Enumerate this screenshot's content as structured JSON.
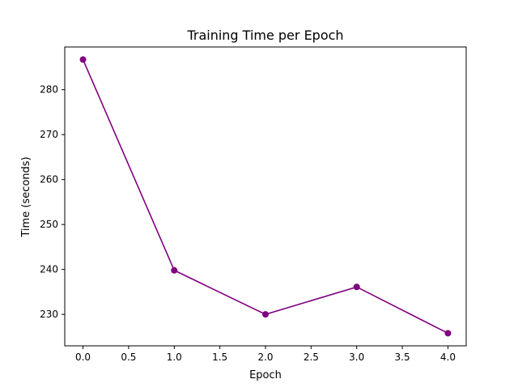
{
  "chart_data": {
    "type": "line",
    "title": "Training Time per Epoch",
    "xlabel": "Epoch",
    "ylabel": "Time (seconds)",
    "x": [
      0,
      1,
      2,
      3,
      4
    ],
    "series": [
      {
        "values": [
          286.7,
          239.8,
          230.0,
          236.1,
          225.8
        ],
        "color": "#800080",
        "marker": "circle"
      }
    ],
    "xlim": [
      -0.2,
      4.2
    ],
    "ylim": [
      223.0,
      289.5
    ],
    "xticks": [
      0.0,
      0.5,
      1.0,
      1.5,
      2.0,
      2.5,
      3.0,
      3.5,
      4.0
    ],
    "xtick_labels": [
      "0.0",
      "0.5",
      "1.0",
      "1.5",
      "2.0",
      "2.5",
      "3.0",
      "3.5",
      "4.0"
    ],
    "yticks": [
      230,
      240,
      250,
      260,
      270,
      280
    ],
    "ytick_labels": [
      "230",
      "240",
      "250",
      "260",
      "270",
      "280"
    ],
    "grid": false,
    "legend": "none"
  }
}
